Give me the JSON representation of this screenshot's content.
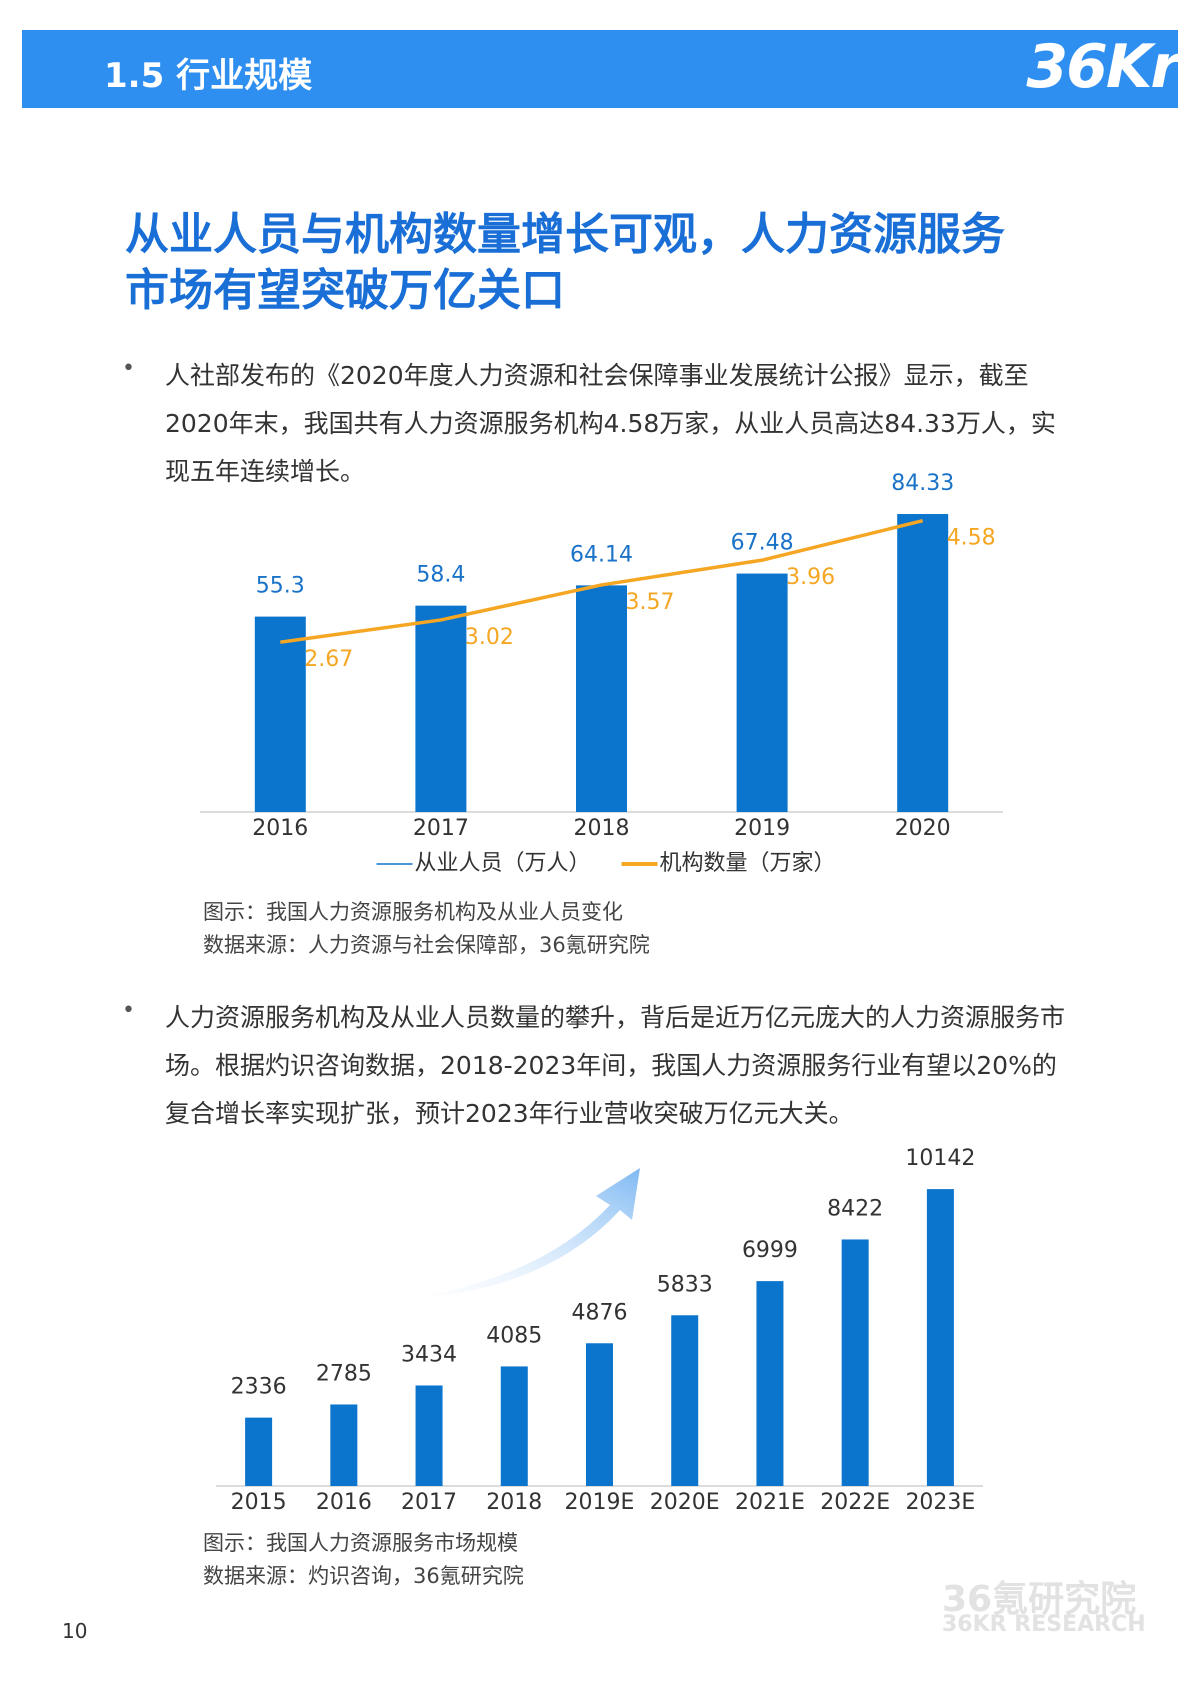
{
  "header": {
    "title": "1.5 行业规模",
    "logo": "36Kr"
  },
  "headline_lines": [
    "从业人员与机构数量增长可观，人力资源服务",
    "市场有望突破万亿关口"
  ],
  "bullets": [
    "人社部发布的《2020年度人力资源和社会保障事业发展统计公报》显示，截至2020年末，我国共有人力资源服务机构4.58万家，从业人员高达84.33万人，实现五年连续增长。",
    "人力资源服务机构及从业人员数量的攀升，背后是近万亿元庞大的人力资源服务市场。根据灼识咨询数据，2018-2023年间，我国人力资源服务行业有望以20%的复合增长率实现扩张，预计2023年行业营收突破万亿元大关。"
  ],
  "chart_data": [
    {
      "type": "bar",
      "categories": [
        "2016",
        "2017",
        "2018",
        "2019",
        "2020"
      ],
      "series": [
        {
          "name": "从业人员（万人）",
          "color": "#0b74cc",
          "values": [
            55.3,
            58.4,
            64.14,
            67.48,
            84.33
          ]
        },
        {
          "name": "机构数量（万家）",
          "color": "#f5a623",
          "type": "line",
          "axis": "y2",
          "values": [
            2.67,
            3.02,
            3.57,
            3.96,
            4.58
          ]
        }
      ],
      "ylim": [
        0,
        90
      ],
      "y2lim": [
        0,
        5
      ],
      "legend": "bottom"
    },
    {
      "type": "bar",
      "categories": [
        "2015",
        "2016",
        "2017",
        "2018",
        "2019E",
        "2020E",
        "2021E",
        "2022E",
        "2023E"
      ],
      "values": [
        2336,
        2785,
        3434,
        4085,
        4876,
        5833,
        6999,
        8422,
        10142
      ],
      "color": "#0b74cc",
      "ylim": [
        0,
        11000
      ]
    }
  ],
  "captions": [
    [
      "图示：我国人力资源服务机构及从业人员变化",
      "数据来源：人力资源与社会保障部，36氪研究院"
    ],
    [
      "图示：我国人力资源服务市场规模",
      "数据来源：灼识咨询，36氪研究院"
    ]
  ],
  "page_number": "10",
  "watermark": [
    "36氪研究院",
    "36KR RESEARCH"
  ]
}
